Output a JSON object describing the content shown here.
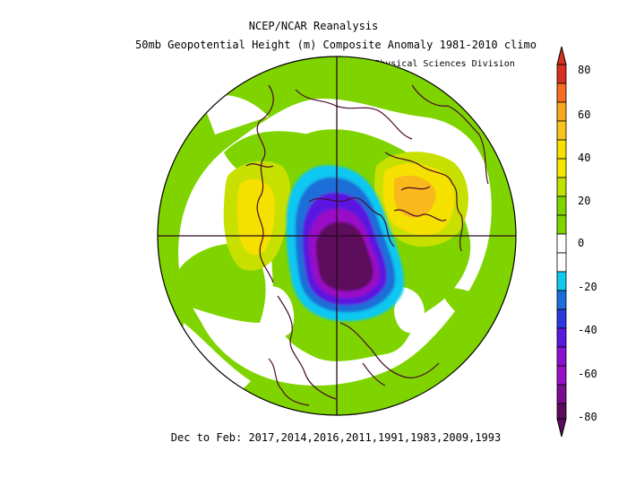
{
  "title_line1": "NCEP/NCAR Reanalysis",
  "title_line2": "50mb Geopotential Height (m) Composite Anomaly 1981-2010 climo",
  "credit": "NOAA/ESRL Physical Sciences Division",
  "footer": "Dec to Feb: 2017,2014,2016,2011,1991,1983,2009,1993",
  "colorbar": {
    "tick_labels": [
      "80",
      "60",
      "40",
      "20",
      "0",
      "-20",
      "-40",
      "-60",
      "-80"
    ],
    "colors": {
      "above_80": "#d7301f",
      "60_80": "#f46d21",
      "40_60": "#f9a81c",
      "20_40": "#f5e000",
      "0_20": "#7fd400",
      "neutral": "#ffffff",
      "m20_0": "#10b4e8",
      "m40_m20": "#1b6ed8",
      "m60_m40": "#5a18e0",
      "m80_m60": "#9a0fc6",
      "below_m80": "#5c0a5c"
    }
  },
  "map": {
    "projection": "north polar stereographic",
    "field": "50mb geopotential height anomaly (m)"
  }
}
